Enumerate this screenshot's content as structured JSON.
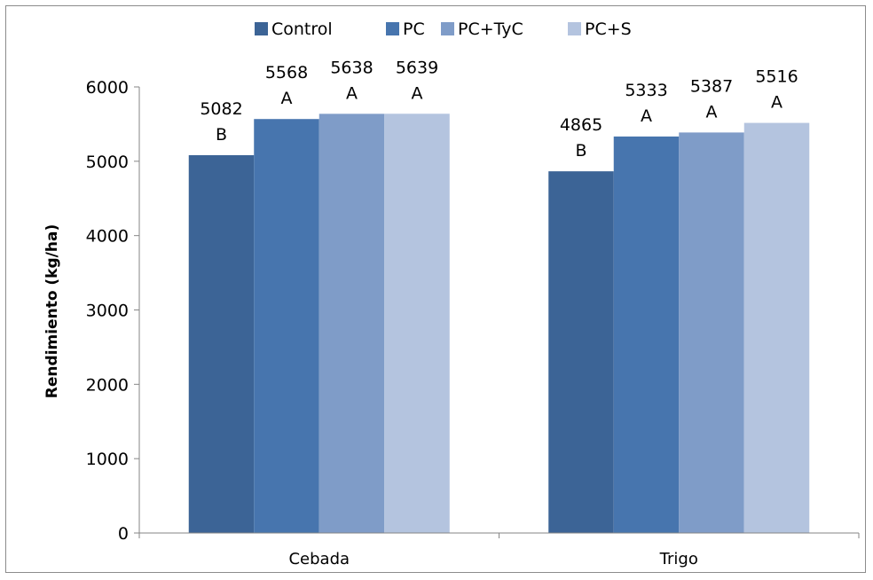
{
  "chart_data": {
    "type": "bar",
    "categories": [
      "Cebada",
      "Trigo"
    ],
    "series": [
      {
        "name": "Control",
        "values": [
          5082,
          4865
        ],
        "letters": [
          "B",
          "B"
        ],
        "color": "#3c6496"
      },
      {
        "name": "PC",
        "values": [
          5568,
          5333
        ],
        "letters": [
          "A",
          "A"
        ],
        "color": "#4775ae"
      },
      {
        "name": "PC+TyC",
        "values": [
          5638,
          5387
        ],
        "letters": [
          "A",
          "A"
        ],
        "color": "#7f9cc8"
      },
      {
        "name": "PC+S",
        "values": [
          5639,
          5516
        ],
        "letters": [
          "A",
          "A"
        ],
        "color": "#b4c4df"
      }
    ],
    "ylabel": "Rendimiento (kg/ha)",
    "xlabel": "",
    "ylim": [
      0,
      6000
    ],
    "yticks": [
      0,
      1000,
      2000,
      3000,
      4000,
      5000,
      6000
    ],
    "grid": false,
    "legend": "top-center"
  }
}
